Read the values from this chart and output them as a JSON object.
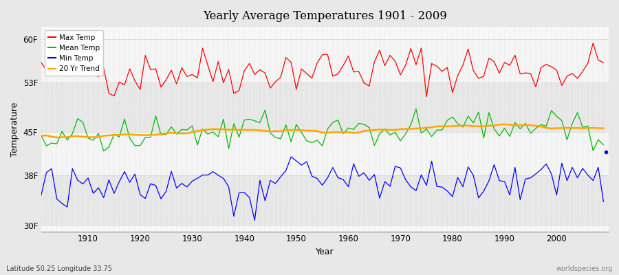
{
  "title": "Yearly Average Temperatures 1901 - 2009",
  "xlabel": "Year",
  "ylabel": "Temperature",
  "lat_lon_text": "Latitude 50.25 Longitude 33.75",
  "watermark": "worldspecies.org",
  "year_start": 1901,
  "year_end": 2009,
  "yticks": [
    30,
    38,
    45,
    53,
    60
  ],
  "ytick_labels": [
    "30F",
    "38F",
    "45F",
    "53F",
    "60F"
  ],
  "colors": {
    "max": "#ff0000",
    "mean": "#00bb00",
    "min": "#0000ff",
    "trend": "#ffa500"
  },
  "legend": [
    "Max Temp",
    "Mean Temp",
    "Min Temp",
    "20 Yr Trend"
  ],
  "background_color": "#e8e8e8",
  "plot_bg_color": "#f0f0f0",
  "band_colors": [
    "#e8e8e8",
    "#f5f5f5"
  ],
  "grid_color": "#cccccc"
}
